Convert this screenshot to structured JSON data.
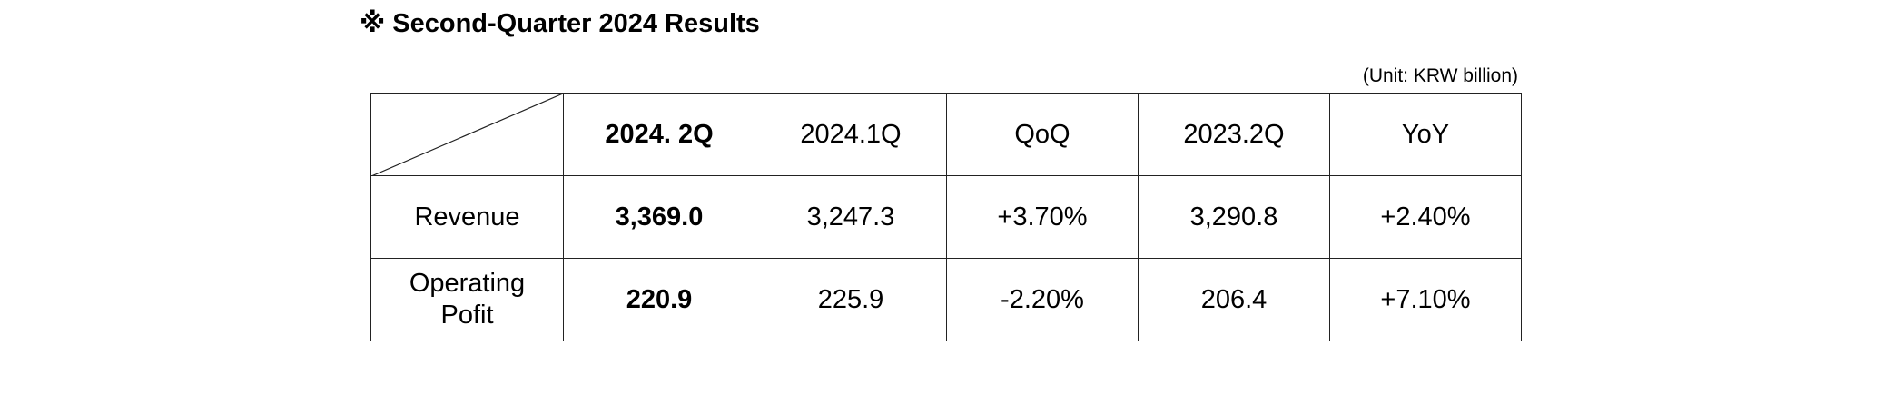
{
  "title": "※ Second-Quarter 2024 Results",
  "unit": "(Unit: KRW billion)",
  "table": {
    "header": [
      "2024. 2Q",
      "2024.1Q",
      "QoQ",
      "2023.2Q",
      "YoY"
    ],
    "rows": [
      {
        "label": "Revenue",
        "cells": [
          "3,369.0",
          "3,247.3",
          "+3.70%",
          "3,290.8",
          "+2.40%"
        ]
      },
      {
        "label": "Operating Pofit",
        "cells": [
          "220.9",
          "225.9",
          "-2.20%",
          "206.4",
          "+7.10%"
        ]
      }
    ]
  }
}
